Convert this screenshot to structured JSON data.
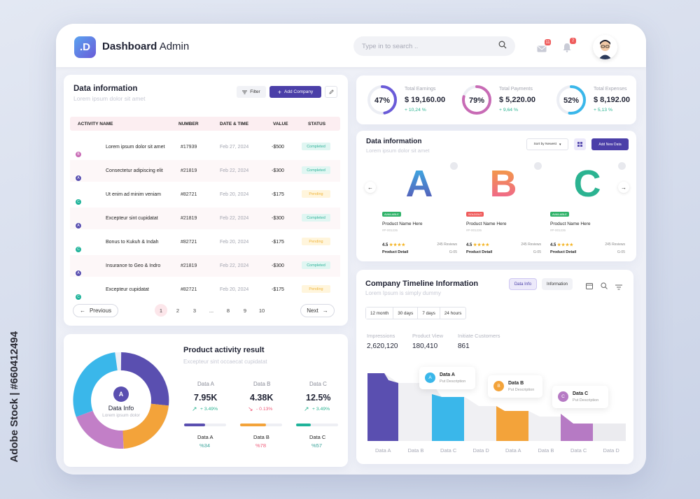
{
  "app": {
    "logo_letter": ".D",
    "title_bold": "Dashboard",
    "title_rest": " Admin"
  },
  "search": {
    "placeholder": "Type in to search .."
  },
  "notifications": {
    "mail_count": "11",
    "bell_count": "7"
  },
  "table": {
    "title": "Data information",
    "subtitle": "Lorem ipsum dolor sit amet",
    "filter_label": "Filter",
    "add_label": "Add Company",
    "headers": [
      "ACTIVITY NAME",
      "NUMBER",
      "DATE & TIME",
      "VALUE",
      "STATUS"
    ],
    "rows": [
      {
        "avatars": [
          "A",
          "B"
        ],
        "name": "Lorem ipsum dolor sit amet",
        "number": "#17939",
        "date": "Feb 27, 2024",
        "value": "-$500",
        "status": "Completed"
      },
      {
        "avatars": [
          "A"
        ],
        "name": "Consectetur adipiscing elit",
        "number": "#21819",
        "date": "Feb 22, 2024",
        "value": "-$300",
        "status": "Completed"
      },
      {
        "avatars": [
          "A",
          "B",
          "C"
        ],
        "name": "Ut enim ad minim veniam",
        "number": "#82721",
        "date": "Feb 20, 2024",
        "value": "-$175",
        "status": "Pending"
      },
      {
        "avatars": [
          "A"
        ],
        "name": "Excepteur sint cupidatat",
        "number": "#21819",
        "date": "Feb 22, 2024",
        "value": "-$300",
        "status": "Completed"
      },
      {
        "avatars": [
          "A",
          "B",
          "C"
        ],
        "name": "Bonus to Kukuh & Indah",
        "number": "#82721",
        "date": "Feb 20, 2024",
        "value": "-$175",
        "status": "Pending"
      },
      {
        "avatars": [
          "A"
        ],
        "name": "Insurance to Geo & Indro",
        "number": "#21819",
        "date": "Feb 22, 2024",
        "value": "-$300",
        "status": "Completed"
      },
      {
        "avatars": [
          "A",
          "B",
          "C"
        ],
        "name": "Excepteur cupidatat",
        "number": "#82721",
        "date": "Feb 20, 2024",
        "value": "-$175",
        "status": "Pending"
      }
    ],
    "pagination": {
      "prev": "Previous",
      "next": "Next",
      "pages": [
        "1",
        "2",
        "3",
        "...",
        "8",
        "9",
        "10"
      ],
      "current": "1"
    }
  },
  "stats": [
    {
      "percent": "47%",
      "fraction": 0.47,
      "label": "Total Earnings",
      "value": "$ 19,160.00",
      "change": "+ 10,24 %",
      "color": "#6a5bd8"
    },
    {
      "percent": "79%",
      "fraction": 0.79,
      "label": "Total Payments",
      "value": "$ 5,220.00",
      "change": "+ 9,64 %",
      "color": "#c86bb5"
    },
    {
      "percent": "52%",
      "fraction": 0.52,
      "label": "Total Expenses",
      "value": "$ 8,192.00",
      "change": "+ 5,13 %",
      "color": "#3ab7ea"
    }
  ],
  "products": {
    "title": "Data information",
    "subtitle": "Lorem ipsum dolor sit amet",
    "sort_label": "Sort by Newest",
    "add_label": "Add New Data",
    "items": [
      {
        "letter": "A",
        "tag": "AVAILABLE",
        "tag_color": "#31b36a",
        "name": "Product Name Here",
        "code": "#P-001235",
        "rating": "4.5",
        "stars": "★★★★",
        "reviews": "245 Reviews",
        "detail": "Product Detail",
        "sku": "G-05"
      },
      {
        "letter": "B",
        "tag": "SOLDOUT",
        "tag_color": "#ef5c5c",
        "name": "Product Name Here",
        "code": "#P-001235",
        "rating": "4.5",
        "stars": "★★★★",
        "reviews": "245 Reviews",
        "detail": "Product Detail",
        "sku": "G-05"
      },
      {
        "letter": "C",
        "tag": "AVAILABLE",
        "tag_color": "#31b36a",
        "name": "Product Name Here",
        "code": "#P-001235",
        "rating": "4.5",
        "stars": "★★★★",
        "reviews": "245 Reviews",
        "detail": "Product Detail",
        "sku": "G-05"
      }
    ]
  },
  "timeline": {
    "title": "Company Timeline Information",
    "subtitle": "Lorem Ipsum is simply dummy",
    "tabs": [
      "Data Info",
      "Information"
    ],
    "ranges": [
      "12 month",
      "30 days",
      "7 days",
      "24 hours"
    ],
    "kpis": [
      {
        "label": "Impressions",
        "value": "2,620,120"
      },
      {
        "label": "Product View",
        "value": "180,410"
      },
      {
        "label": "Initiate Customers",
        "value": "861"
      }
    ],
    "callouts": [
      {
        "letter": "A",
        "title": "Data A",
        "sub": "Put Description"
      },
      {
        "letter": "B",
        "title": "Data B",
        "sub": "Put Description"
      },
      {
        "letter": "C",
        "title": "Data C",
        "sub": "Put Description"
      }
    ],
    "x_labels": [
      "Data A",
      "Data B",
      "Data C",
      "Data D",
      "Data A",
      "Data B",
      "Data C",
      "Data D"
    ]
  },
  "activity": {
    "title": "Product activity result",
    "subtitle": "Excepteur sint occaecat cupidatat",
    "donut_letter": "A",
    "donut_title": "Data Info",
    "donut_sub": "Lorem ipsum dolor",
    "metrics": [
      {
        "label": "Data A",
        "value": "7.95K",
        "change": "+ 3.49%",
        "arrow": "↗",
        "up": true,
        "bar": 0.5,
        "color": "#5a4fb0",
        "bottom_label": "Data A",
        "bottom_pct": "%34",
        "pct_color": "#3aa39a"
      },
      {
        "label": "Data B",
        "value": "4.38K",
        "change": "- 0.13%",
        "arrow": "↘",
        "up": false,
        "bar": 0.62,
        "color": "#f3a33a",
        "bottom_label": "Data B",
        "bottom_pct": "%78",
        "pct_color": "#ef5c7a"
      },
      {
        "label": "Data C",
        "value": "12.5%",
        "change": "+ 3.49%",
        "arrow": "↗",
        "up": true,
        "bar": 0.35,
        "color": "#1fb39a",
        "bottom_label": "Data C",
        "bottom_pct": "%57",
        "pct_color": "#3aa39a"
      }
    ]
  },
  "side_text": "Adobe Stock | #660412494"
}
